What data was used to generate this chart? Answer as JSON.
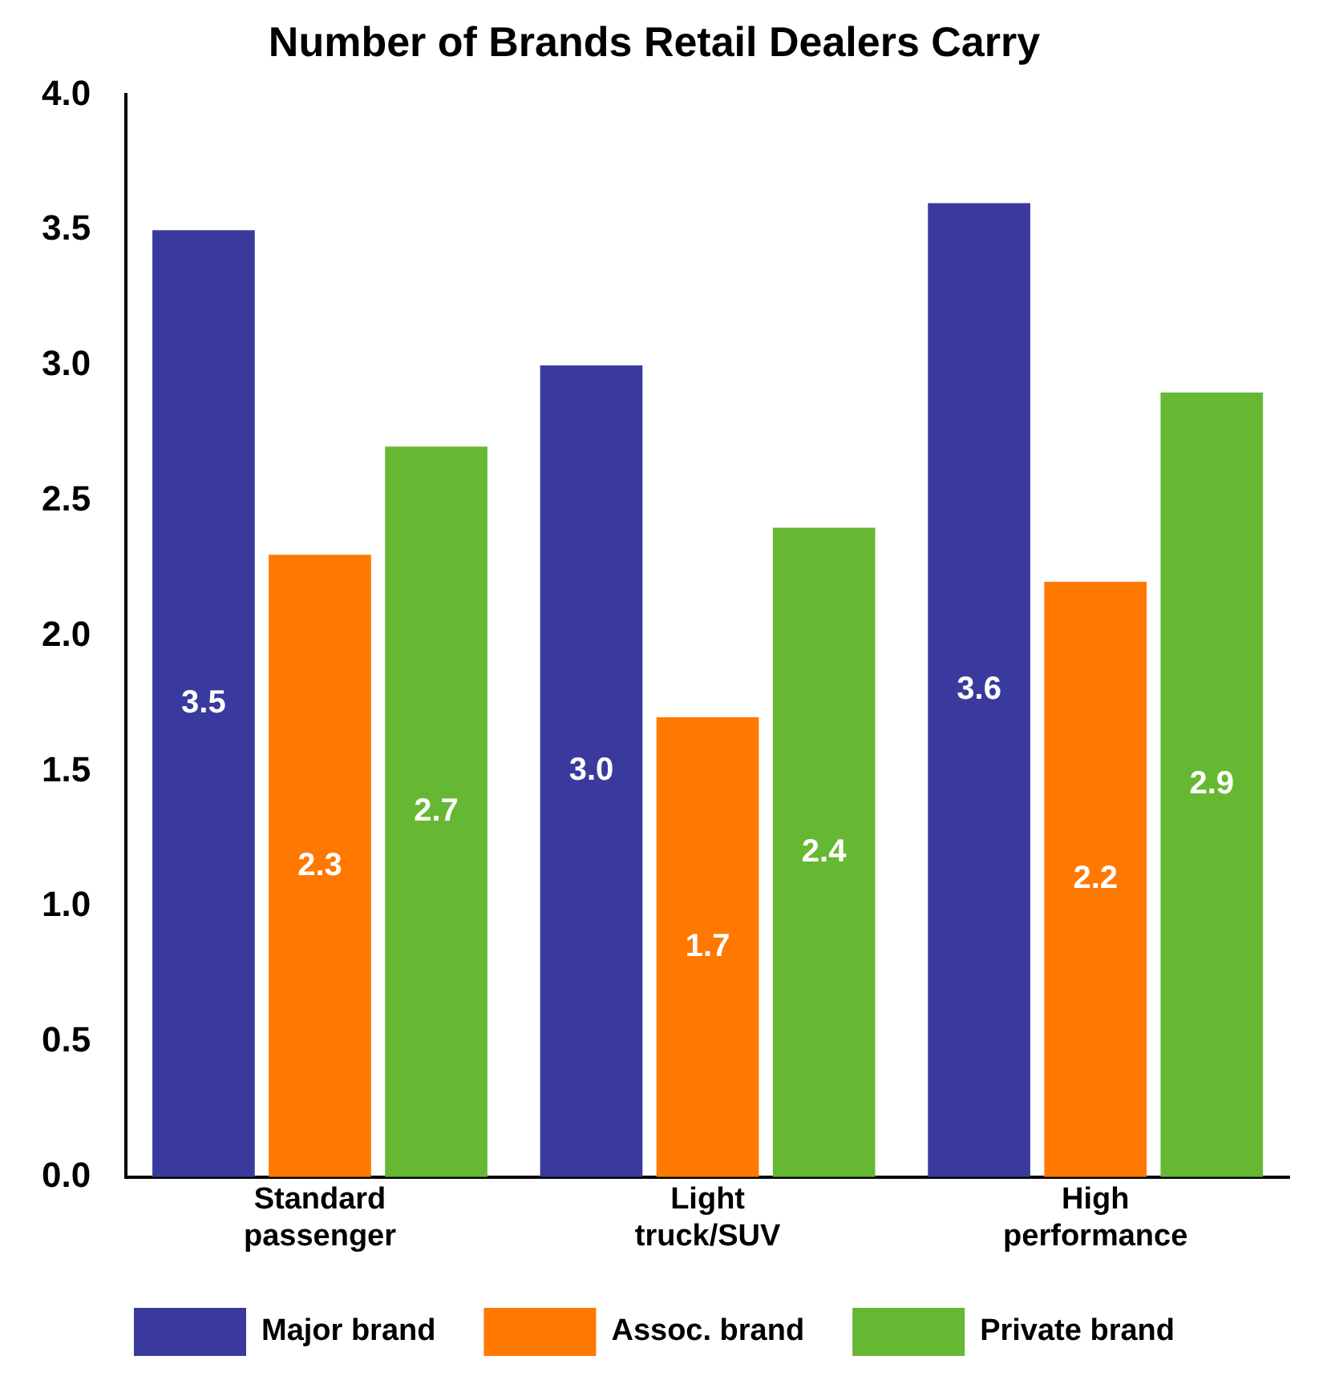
{
  "chart_data": {
    "type": "bar",
    "title": "Number of Brands Retail Dealers Carry",
    "categories": [
      "Standard passenger",
      "Light truck/SUV",
      "High performance"
    ],
    "series": [
      {
        "name": "Major brand",
        "color": "#3a3a9e",
        "values": [
          3.5,
          3.0,
          3.6
        ],
        "value_labels": [
          "3.5",
          "3.0",
          "3.6"
        ]
      },
      {
        "name": "Assoc. brand",
        "color": "#ff7800",
        "values": [
          2.3,
          1.7,
          2.2
        ],
        "value_labels": [
          "2.3",
          "1.7",
          "2.2"
        ]
      },
      {
        "name": "Private brand",
        "color": "#66b832",
        "values": [
          2.7,
          2.4,
          2.9
        ],
        "value_labels": [
          "2.7",
          "2.4",
          "2.9"
        ]
      }
    ],
    "ylim": [
      0,
      4
    ],
    "yticks": [
      {
        "value": 0,
        "label": "0.0"
      },
      {
        "value": 0.5,
        "label": "0.5"
      },
      {
        "value": 1,
        "label": "1.0"
      },
      {
        "value": 1.5,
        "label": "1.5"
      },
      {
        "value": 2,
        "label": "2.0"
      },
      {
        "value": 2.5,
        "label": "2.5"
      },
      {
        "value": 3,
        "label": "3.0"
      },
      {
        "value": 3.5,
        "label": "3.5"
      },
      {
        "value": 4,
        "label": "4.0"
      }
    ],
    "legend": "bottom",
    "grid": false
  }
}
